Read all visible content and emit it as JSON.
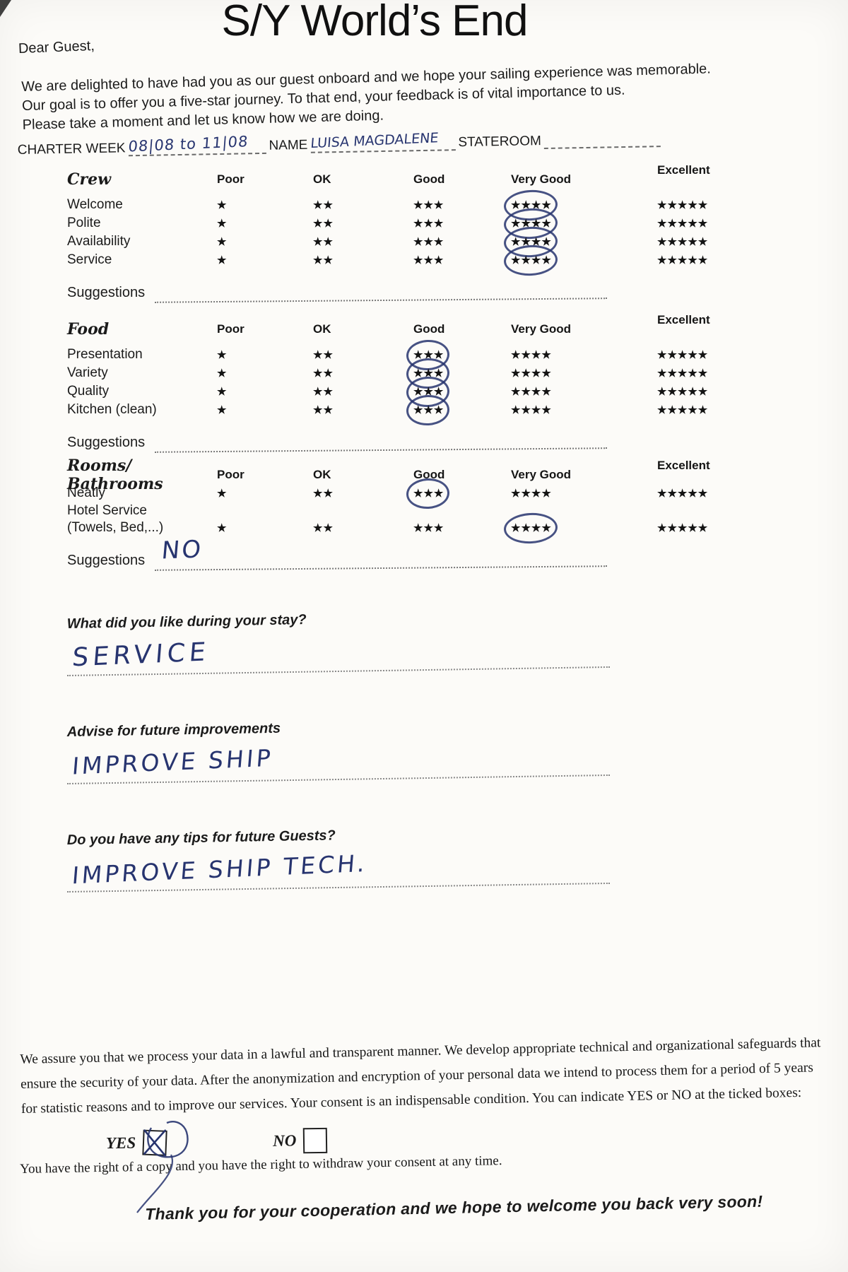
{
  "page": {
    "title": "S/Y World’s End",
    "salutation": "Dear Guest,",
    "intro": [
      "We are delighted to have had you as our guest onboard and we hope your sailing experience was memorable.",
      "Our goal is to offer you a five-star journey. To that end, your feedback is of vital importance to us.",
      "Please take a moment and let us know how we are doing."
    ]
  },
  "charter": {
    "week_label": "CHARTER WEEK",
    "week_value": "08|08 to 11|08",
    "name_label": "NAME",
    "name_value": "LUISA MAGDALENE",
    "stateroom_label": "STATEROOM",
    "stateroom_value": ""
  },
  "rating_scale": [
    "Poor",
    "OK",
    "Good",
    "Very Good",
    "Excellent"
  ],
  "scale_star_counts": [
    1,
    2,
    3,
    4,
    5
  ],
  "glyphs": {
    "star": "★"
  },
  "sections": [
    {
      "title": "Crew",
      "suggestions_label": "Suggestions",
      "suggestions_value": "",
      "rows": [
        {
          "label": "Welcome",
          "has_stars": true,
          "circled": "Very Good"
        },
        {
          "label": "Polite",
          "has_stars": true,
          "circled": "Very Good"
        },
        {
          "label": "Availability",
          "has_stars": true,
          "circled": "Very Good"
        },
        {
          "label": "Service",
          "has_stars": true,
          "circled": "Very Good"
        }
      ]
    },
    {
      "title": "Food",
      "suggestions_label": "Suggestions",
      "suggestions_value": "",
      "rows": [
        {
          "label": "Presentation",
          "has_stars": true,
          "circled": "Good"
        },
        {
          "label": "Variety",
          "has_stars": true,
          "circled": "Good"
        },
        {
          "label": "Quality",
          "has_stars": true,
          "circled": "Good"
        },
        {
          "label": "Kitchen (clean)",
          "has_stars": true,
          "circled": "Good"
        }
      ]
    },
    {
      "title": "Rooms/ Bathrooms",
      "suggestions_label": "Suggestions",
      "suggestions_value": "NO",
      "rows": [
        {
          "label": "Neatly",
          "has_stars": true,
          "circled": "Good"
        },
        {
          "label": "Hotel Service",
          "has_stars": false,
          "circled": ""
        },
        {
          "label": "(Towels, Bed,...)",
          "has_stars": true,
          "circled": "Very Good"
        }
      ]
    }
  ],
  "questions": [
    {
      "label": "What did you like during your stay?",
      "answer": "SERVICE"
    },
    {
      "label": "Advise for future improvements",
      "answer": "IMPROVE SHIP"
    },
    {
      "label": "Do you have any tips for future Guests?",
      "answer": "IMPROVE SHIP TECH."
    }
  ],
  "legal": {
    "lines": [
      "We assure you that we process your data in a lawful and transparent manner. We develop appropriate technical and organizational safeguards that",
      "ensure the security of your data. After the anonymization and encryption of your personal data we intend to process them for a period of 5 years",
      "for statistic reasons and to improve our services. Your consent is an indispensable condition. You can indicate YES or NO at the ticked boxes:"
    ],
    "yes_label": "YES",
    "no_label": "NO",
    "yes_checked": true,
    "no_checked": false,
    "rights_line": "You have the right of a copy and you have the right to withdraw your consent at any time."
  },
  "footer": "Thank you for your cooperation and we hope to welcome you back very soon!",
  "colors": {
    "ink": "#27346f",
    "paper": "#fcfbf8",
    "text": "#1b1b1b",
    "stars": "#141414"
  }
}
